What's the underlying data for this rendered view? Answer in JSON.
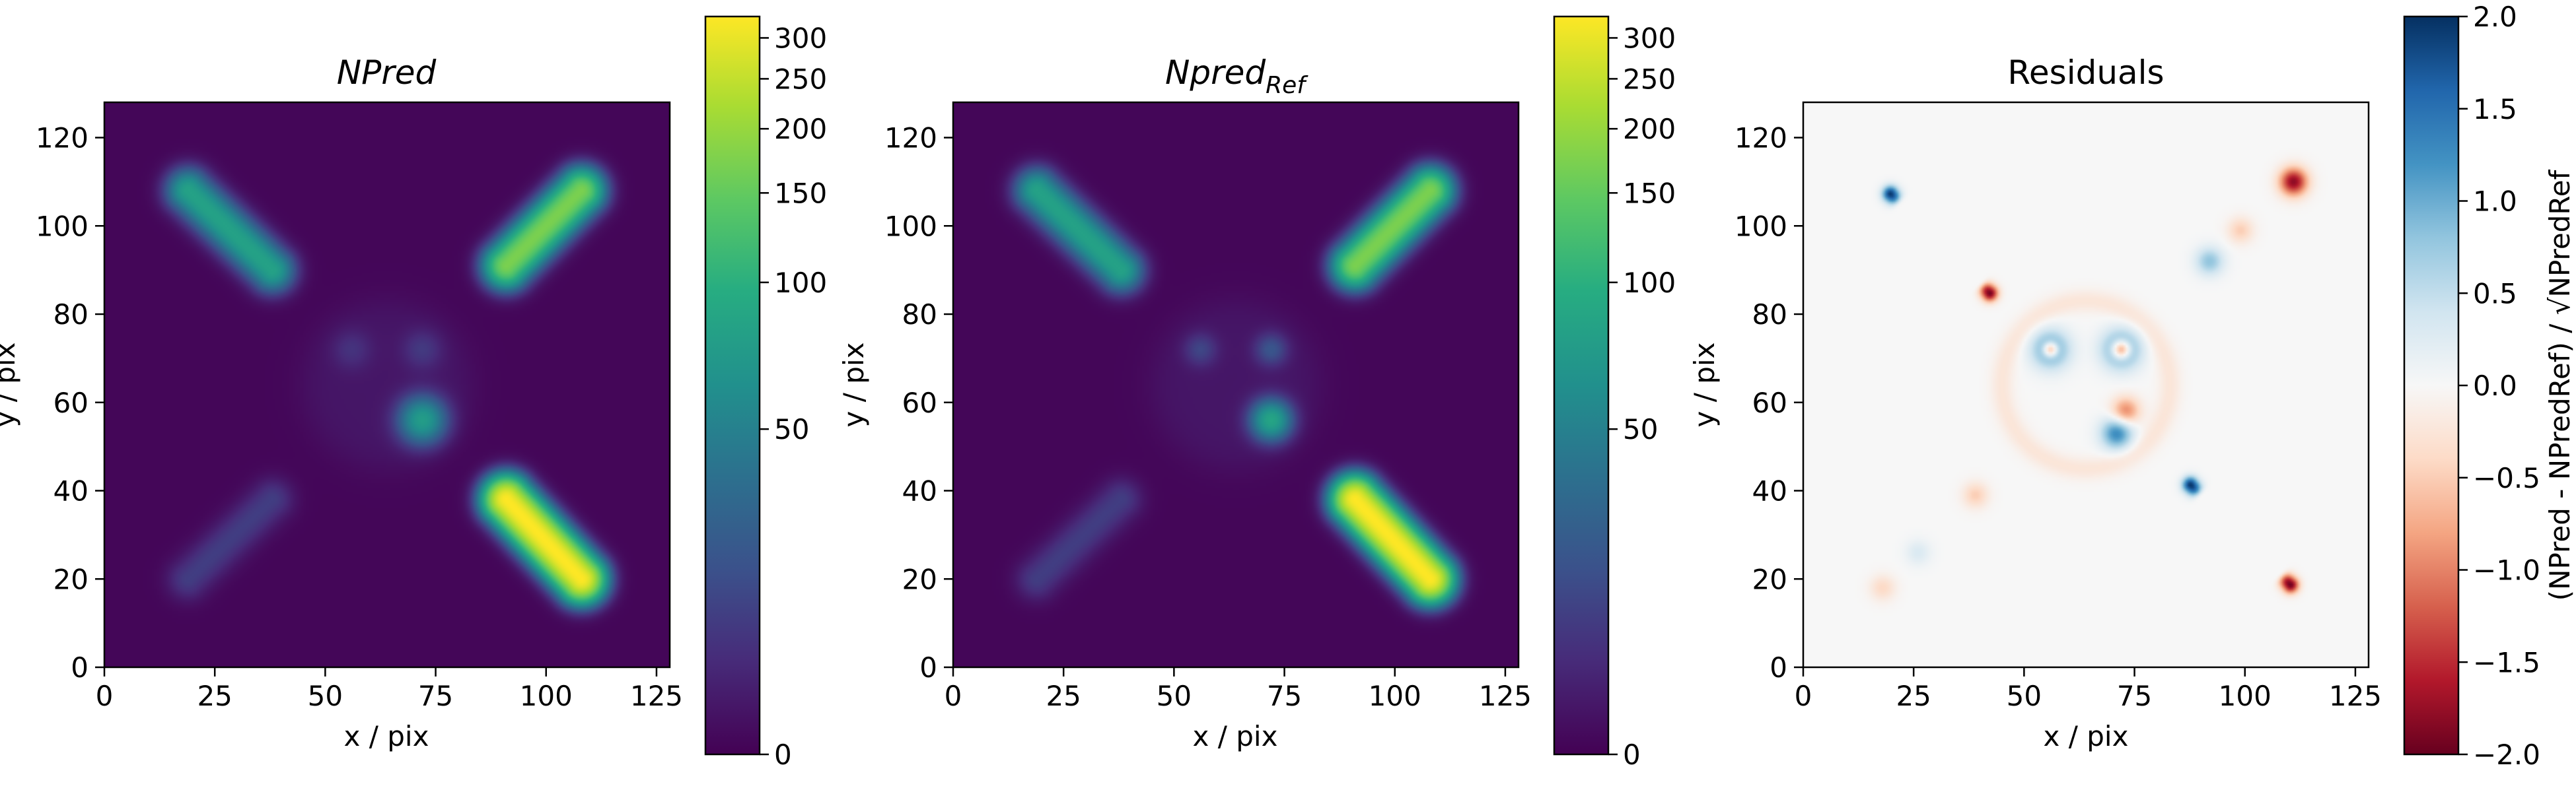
{
  "chart_data": [
    {
      "type": "heatmap",
      "title": "NPred",
      "xlabel": "x / pix",
      "ylabel": "y / pix",
      "xlim": [
        0,
        128
      ],
      "ylim": [
        0,
        128
      ],
      "xticks": [
        "0",
        "25",
        "50",
        "75",
        "100",
        "125"
      ],
      "yticks": [
        "0",
        "20",
        "40",
        "60",
        "80",
        "100",
        "120"
      ],
      "colormap": "viridis",
      "colorbar": {
        "scale": "asinh-stretch",
        "range": [
          0,
          330
        ],
        "ticks": [
          "0",
          "50",
          "100",
          "150",
          "200",
          "250",
          "300"
        ],
        "label": ""
      },
      "features": [
        {
          "shape": "bar",
          "from": [
            19,
            108
          ],
          "to": [
            38,
            90
          ],
          "peak": 80
        },
        {
          "shape": "bar",
          "from": [
            91,
            91
          ],
          "to": [
            108,
            108
          ],
          "peak": 170
        },
        {
          "shape": "bar",
          "from": [
            19,
            20
          ],
          "to": [
            38,
            38
          ],
          "peak": 15
        },
        {
          "shape": "bar",
          "from": [
            91,
            38
          ],
          "to": [
            108,
            20
          ],
          "peak": 330
        },
        {
          "shape": "disk",
          "center": [
            64,
            64
          ],
          "radius": 19,
          "peak": 4
        },
        {
          "shape": "blob",
          "center": [
            56,
            72
          ],
          "radius": 3,
          "peak": 8
        },
        {
          "shape": "blob",
          "center": [
            72,
            72
          ],
          "radius": 3,
          "peak": 10
        },
        {
          "shape": "blob",
          "center": [
            72,
            56
          ],
          "radius": 3.5,
          "peak": 70
        }
      ]
    },
    {
      "type": "heatmap",
      "title": "Npred",
      "title_subscript": "Ref",
      "xlabel": "x / pix",
      "ylabel": "y / pix",
      "xlim": [
        0,
        128
      ],
      "ylim": [
        0,
        128
      ],
      "xticks": [
        "0",
        "25",
        "50",
        "75",
        "100",
        "125"
      ],
      "yticks": [
        "0",
        "20",
        "40",
        "60",
        "80",
        "100",
        "120"
      ],
      "colormap": "viridis",
      "colorbar": {
        "scale": "asinh-stretch",
        "range": [
          0,
          330
        ],
        "ticks": [
          "0",
          "50",
          "100",
          "150",
          "200",
          "250",
          "300"
        ],
        "label": ""
      },
      "features": [
        {
          "shape": "bar",
          "from": [
            19,
            108
          ],
          "to": [
            38,
            90
          ],
          "peak": 80
        },
        {
          "shape": "bar",
          "from": [
            91,
            91
          ],
          "to": [
            108,
            108
          ],
          "peak": 170
        },
        {
          "shape": "bar",
          "from": [
            19,
            20
          ],
          "to": [
            38,
            38
          ],
          "peak": 15
        },
        {
          "shape": "bar",
          "from": [
            91,
            38
          ],
          "to": [
            108,
            20
          ],
          "peak": 330
        },
        {
          "shape": "disk",
          "center": [
            64,
            64
          ],
          "radius": 19,
          "peak": 4
        },
        {
          "shape": "blob",
          "center": [
            56,
            72
          ],
          "radius": 2.5,
          "peak": 14
        },
        {
          "shape": "blob",
          "center": [
            72,
            72
          ],
          "radius": 2.5,
          "peak": 20
        },
        {
          "shape": "blob",
          "center": [
            72,
            56
          ],
          "radius": 3,
          "peak": 80
        }
      ]
    },
    {
      "type": "heatmap",
      "title": "Residuals",
      "xlabel": "x / pix",
      "ylabel": "y / pix",
      "xlim": [
        0,
        128
      ],
      "ylim": [
        0,
        128
      ],
      "xticks": [
        "0",
        "25",
        "50",
        "75",
        "100",
        "125"
      ],
      "yticks": [
        "0",
        "20",
        "40",
        "60",
        "80",
        "100",
        "120"
      ],
      "colormap": "RdBu",
      "colorbar": {
        "scale": "linear",
        "range": [
          -2.0,
          2.0
        ],
        "ticks": [
          "−2.0",
          "−1.5",
          "−1.0",
          "−0.5",
          "0.0",
          "0.5",
          "1.0",
          "1.5",
          "2.0"
        ],
        "label": "(NPred - NPredRef) / √NPredRef"
      },
      "features": [
        {
          "shape": "bar",
          "from": [
            21,
            106
          ],
          "to": [
            41,
            86
          ],
          "offset": [
            -1.2,
            -1.2
          ],
          "peak": 2.0
        },
        {
          "shape": "bar",
          "from": [
            21,
            106
          ],
          "to": [
            41,
            86
          ],
          "offset": [
            1.2,
            1.2
          ],
          "peak": -2.0
        },
        {
          "shape": "bar",
          "from": [
            89,
            40
          ],
          "to": [
            109,
            20
          ],
          "offset": [
            -1.3,
            -1.3
          ],
          "peak": 2.0
        },
        {
          "shape": "bar",
          "from": [
            89,
            40
          ],
          "to": [
            109,
            20
          ],
          "offset": [
            1.3,
            1.3
          ],
          "peak": -2.0
        },
        {
          "shape": "ring",
          "center": [
            64,
            64
          ],
          "radius": 19,
          "peak": -0.25
        },
        {
          "shape": "blob",
          "center": [
            56,
            72
          ],
          "radius": 3,
          "peak": 1.2
        },
        {
          "shape": "blob",
          "center": [
            56,
            72
          ],
          "radius": 1.2,
          "peak": -1.6
        },
        {
          "shape": "blob",
          "center": [
            72,
            72
          ],
          "radius": 3,
          "peak": 1.4
        },
        {
          "shape": "blob",
          "center": [
            72,
            72
          ],
          "radius": 1.5,
          "peak": -2.0
        },
        {
          "shape": "blob",
          "center": [
            71,
            53
          ],
          "radius": 2.5,
          "peak": 1.3
        },
        {
          "shape": "blob",
          "center": [
            73,
            58
          ],
          "radius": 2.2,
          "peak": -1.0
        },
        {
          "shape": "blob",
          "center": [
            111,
            110
          ],
          "radius": 2.2,
          "peak": -1.8
        },
        {
          "shape": "blob",
          "center": [
            92,
            92
          ],
          "radius": 2.2,
          "peak": 0.8
        },
        {
          "shape": "blob",
          "center": [
            99,
            99
          ],
          "radius": 2,
          "peak": -0.5
        },
        {
          "shape": "blob",
          "center": [
            18,
            18
          ],
          "radius": 2,
          "peak": -0.4
        },
        {
          "shape": "blob",
          "center": [
            26,
            26
          ],
          "radius": 2,
          "peak": 0.3
        },
        {
          "shape": "blob",
          "center": [
            39,
            39
          ],
          "radius": 2,
          "peak": -0.5
        }
      ]
    }
  ]
}
